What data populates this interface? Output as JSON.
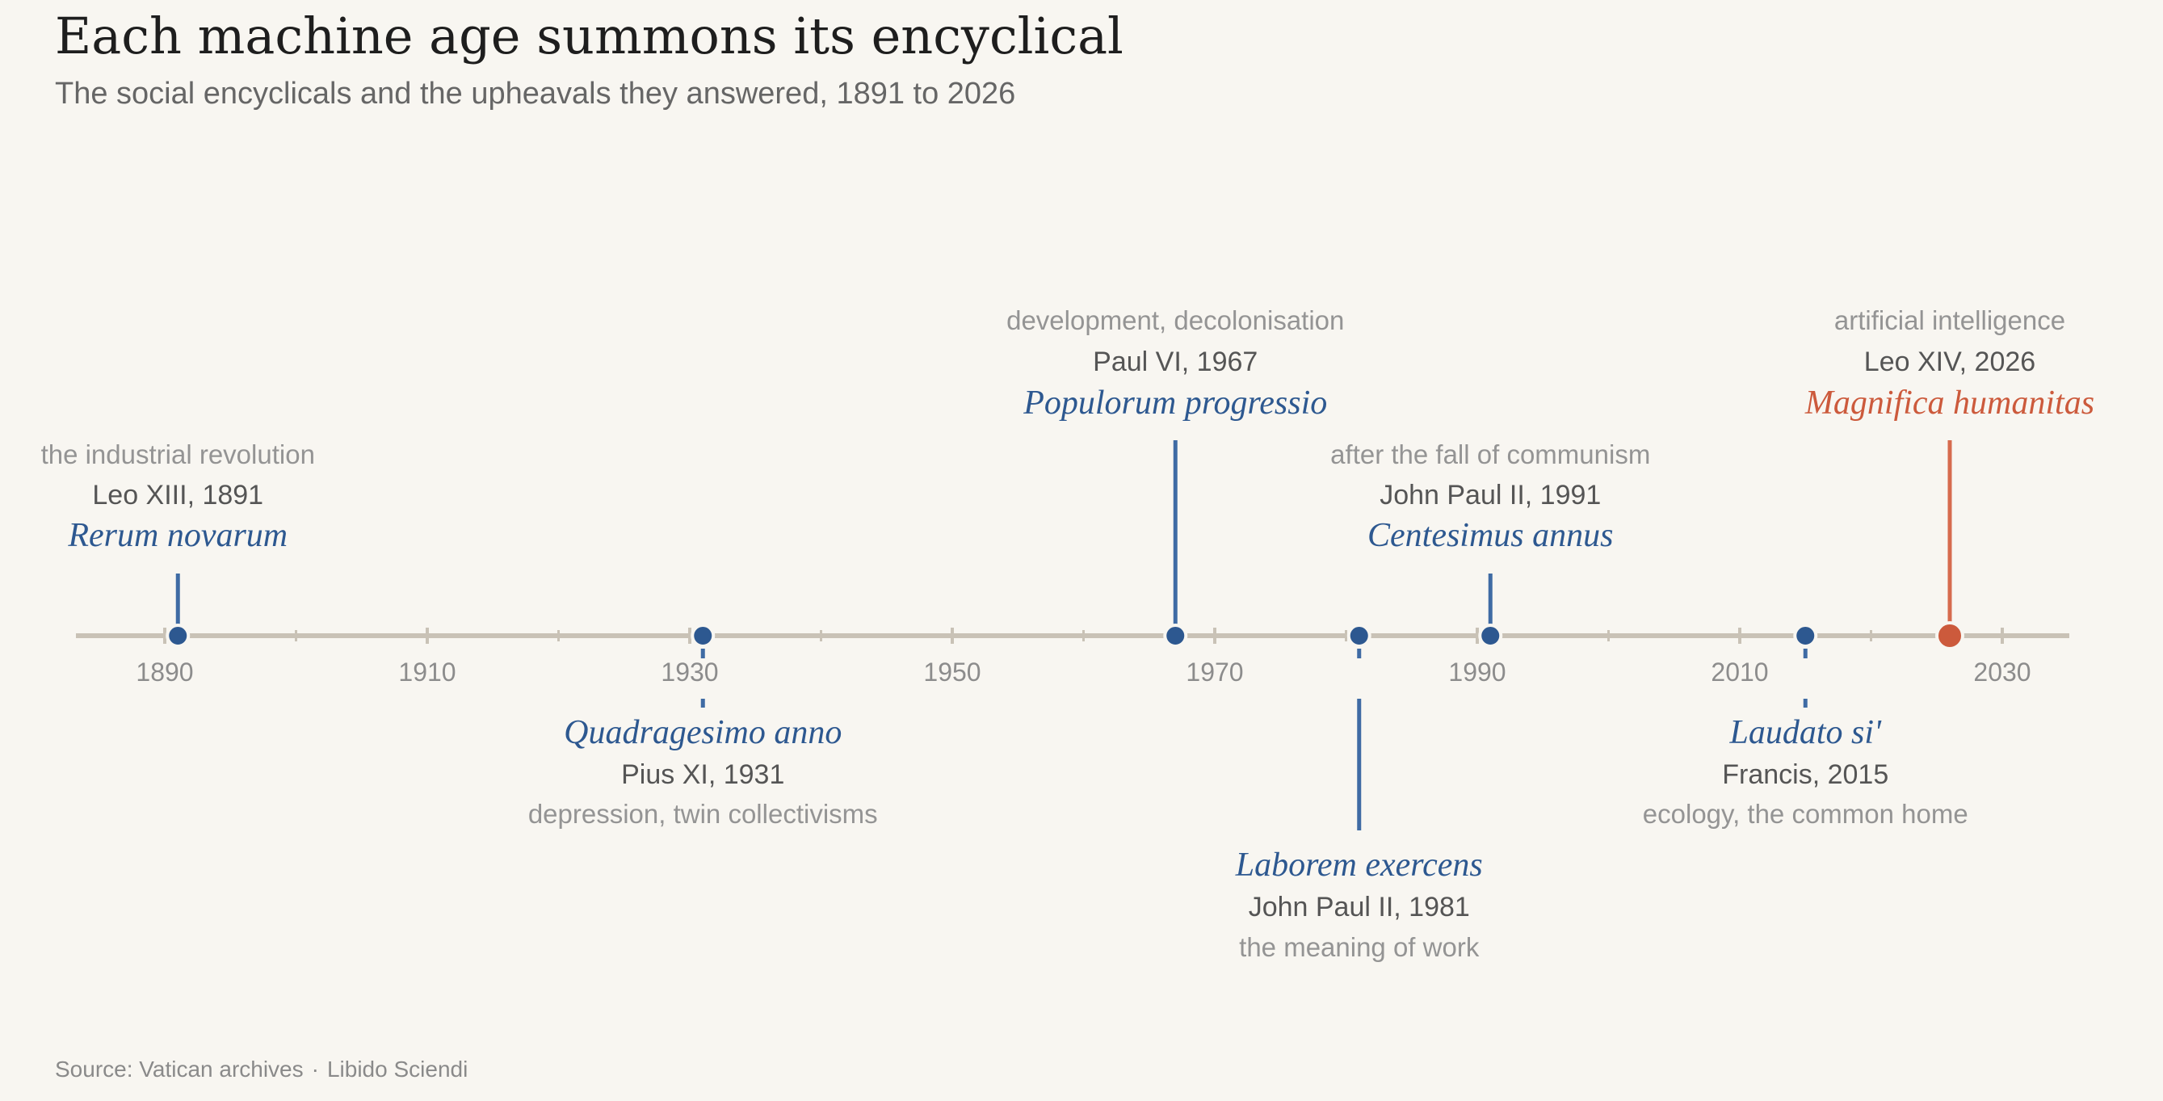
{
  "header": {
    "title": "Each machine age summons its encyclical",
    "subtitle": "The social encyclicals and the upheavals they answered, 1891 to 2026"
  },
  "footer": {
    "source": "Source: Vatican archives",
    "separator": "·",
    "credit": "Libido Sciendi"
  },
  "colors": {
    "background": "#f8f6f1",
    "axis": "#c9c2b6",
    "series": "#2d5890",
    "stem": "#3f6ba4",
    "highlight": "#cc5a3c",
    "highlight_stem": "#d66b4e"
  },
  "chart_data": {
    "type": "timeline",
    "title": "Each machine age summons its encyclical",
    "subtitle": "The social encyclicals and the upheavals they answered, 1891 to 2026",
    "xlim": [
      1883,
      2036
    ],
    "x_ticks": [
      1890,
      1910,
      1930,
      1950,
      1970,
      1990,
      2010,
      2030
    ],
    "minor_ticks": [
      1900,
      1920,
      1940,
      1960,
      1980,
      2000,
      2020
    ],
    "events": [
      {
        "year": 1891,
        "title": "Rerum novarum",
        "author": "Leo XIII, 1891",
        "theme": "the industrial revolution",
        "side": "above",
        "level": "near",
        "highlight": false
      },
      {
        "year": 1931,
        "title": "Quadragesimo anno",
        "author": "Pius XI, 1931",
        "theme": "depression, twin collectivisms",
        "side": "below",
        "level": "near",
        "highlight": false
      },
      {
        "year": 1967,
        "title": "Populorum progressio",
        "author": "Paul VI, 1967",
        "theme": "development, decolonisation",
        "side": "above",
        "level": "far",
        "highlight": false
      },
      {
        "year": 1981,
        "title": "Laborem exercens",
        "author": "John Paul II, 1981",
        "theme": "the meaning of work",
        "side": "below",
        "level": "far",
        "highlight": false
      },
      {
        "year": 1991,
        "title": "Centesimus annus",
        "author": "John Paul II, 1991",
        "theme": "after the fall of communism",
        "side": "above",
        "level": "near",
        "highlight": false
      },
      {
        "year": 2015,
        "title": "Laudato si'",
        "author": "Francis, 2015",
        "theme": "ecology, the common home",
        "side": "below",
        "level": "near",
        "highlight": false
      },
      {
        "year": 2026,
        "title": "Magnifica humanitas",
        "author": "Leo XIV, 2026",
        "theme": "artificial intelligence",
        "side": "above",
        "level": "far",
        "highlight": true
      }
    ]
  }
}
